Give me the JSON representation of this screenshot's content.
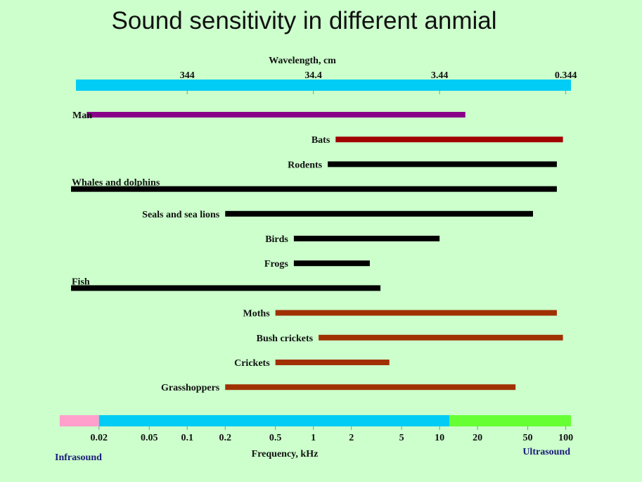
{
  "title": "Sound sensitivity in different anmial",
  "colors": {
    "background": "#ccffcc",
    "wavelength_bar": "#00ccf5",
    "infrasound": "#ff9fcc",
    "audible": "#00ccf5",
    "ultrasound": "#66ff33",
    "man": "#880088",
    "bats": "#a00000",
    "vertebrates": "#000000",
    "insects": "#a03000"
  },
  "chart_data": {
    "type": "bar",
    "orientation": "horizontal-range",
    "title": "Sound sensitivity in different anmial",
    "top_axis": {
      "label": "Wavelength, cm",
      "ticks": [
        {
          "label": "344",
          "freq_khz": 0.1
        },
        {
          "label": "34.4",
          "freq_khz": 1
        },
        {
          "label": "3.44",
          "freq_khz": 10
        },
        {
          "label": "0.344",
          "freq_khz": 100
        }
      ]
    },
    "bottom_axis": {
      "label": "Frequency, kHz",
      "scale": "log",
      "range": [
        0.012,
        110
      ],
      "ticks": [
        {
          "label": "0.02",
          "value": 0.02
        },
        {
          "label": "0.05",
          "value": 0.05
        },
        {
          "label": "0.1",
          "value": 0.1
        },
        {
          "label": "0.2",
          "value": 0.2
        },
        {
          "label": "0.5",
          "value": 0.5
        },
        {
          "label": "1",
          "value": 1
        },
        {
          "label": "2",
          "value": 2
        },
        {
          "label": "5",
          "value": 5
        },
        {
          "label": "10",
          "value": 10
        },
        {
          "label": "20",
          "value": 20
        },
        {
          "label": "50",
          "value": 50
        },
        {
          "label": "100",
          "value": 100
        }
      ],
      "regions": [
        {
          "name": "infrasound",
          "from": 0.012,
          "to": 0.02
        },
        {
          "name": "audible",
          "from": 0.02,
          "to": 12
        },
        {
          "name": "ultrasound",
          "from": 12,
          "to": 110
        }
      ],
      "infrasound_label": "Infrasound",
      "ultrasound_label": "Ultrasound"
    },
    "series": [
      {
        "name": "Man",
        "min_khz": 0.016,
        "max_khz": 16,
        "color_key": "man",
        "label_side": "left-start"
      },
      {
        "name": "Bats",
        "min_khz": 1.5,
        "max_khz": 95,
        "color_key": "bats",
        "label_side": "before"
      },
      {
        "name": "Rodents",
        "min_khz": 1.3,
        "max_khz": 85,
        "color_key": "vertebrates",
        "label_side": "before"
      },
      {
        "name": "Whales and dolphins",
        "min_khz": 0.012,
        "max_khz": 85,
        "color_key": "vertebrates",
        "label_side": "above"
      },
      {
        "name": "Seals and sea lions",
        "min_khz": 0.2,
        "max_khz": 55,
        "color_key": "vertebrates",
        "label_side": "before"
      },
      {
        "name": "Birds",
        "min_khz": 0.7,
        "max_khz": 10,
        "color_key": "vertebrates",
        "label_side": "before"
      },
      {
        "name": "Frogs",
        "min_khz": 0.7,
        "max_khz": 2.8,
        "color_key": "vertebrates",
        "label_side": "before"
      },
      {
        "name": "Fish",
        "min_khz": 0.012,
        "max_khz": 3.4,
        "color_key": "vertebrates",
        "label_side": "above"
      },
      {
        "name": "Moths",
        "min_khz": 0.5,
        "max_khz": 85,
        "color_key": "insects",
        "label_side": "before"
      },
      {
        "name": "Bush crickets",
        "min_khz": 1.1,
        "max_khz": 95,
        "color_key": "insects",
        "label_side": "before"
      },
      {
        "name": "Crickets",
        "min_khz": 0.5,
        "max_khz": 4,
        "color_key": "insects",
        "label_side": "before"
      },
      {
        "name": "Grasshoppers",
        "min_khz": 0.2,
        "max_khz": 40,
        "color_key": "insects",
        "label_side": "before"
      }
    ]
  }
}
